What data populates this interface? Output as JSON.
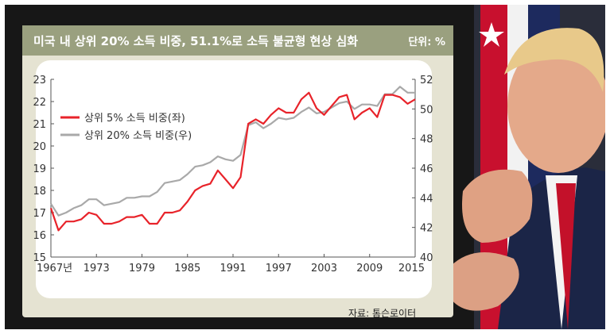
{
  "header": {
    "title": "미국 내 상위 20% 소득 비중, 51.1%로 소득 불균형 현상 심화",
    "unit": "단위: %"
  },
  "source": "자료: 톰슨로이터",
  "colors": {
    "top5": "#e8232a",
    "top20": "#a9a9a9",
    "panel": "#e5e3d2",
    "title_bar": "#9aa07f"
  },
  "chart_data": {
    "type": "line",
    "title": "미국 내 상위 20% 소득 비중, 51.1%로 소득 불균형 현상 심화",
    "x": [
      1967,
      1968,
      1969,
      1970,
      1971,
      1972,
      1973,
      1974,
      1975,
      1976,
      1977,
      1978,
      1979,
      1980,
      1981,
      1982,
      1983,
      1984,
      1985,
      1986,
      1987,
      1988,
      1989,
      1990,
      1991,
      1992,
      1993,
      1994,
      1995,
      1996,
      1997,
      1998,
      1999,
      2000,
      2001,
      2002,
      2003,
      2004,
      2005,
      2006,
      2007,
      2008,
      2009,
      2010,
      2011,
      2012,
      2013,
      2014,
      2015
    ],
    "x_ticks": [
      "1967년",
      "1973",
      "1979",
      "1985",
      "1991",
      "1997",
      "2003",
      "2009",
      "2015"
    ],
    "y_left": {
      "range": [
        15,
        23
      ],
      "ticks": [
        "15",
        "16",
        "17",
        "18",
        "19",
        "20",
        "21",
        "22",
        "23"
      ]
    },
    "y_right": {
      "range": [
        40,
        52
      ],
      "ticks": [
        "40",
        "42",
        "44",
        "46",
        "48",
        "50",
        "52"
      ]
    },
    "legend_position": "top-left",
    "series": [
      {
        "name": "상위 5% 소득 비중(좌)",
        "axis": "left",
        "values": [
          17.2,
          16.2,
          16.6,
          16.6,
          16.7,
          17.0,
          16.9,
          16.5,
          16.5,
          16.6,
          16.8,
          16.8,
          16.9,
          16.5,
          16.5,
          17.0,
          17.0,
          17.1,
          17.5,
          18.0,
          18.2,
          18.3,
          18.9,
          18.5,
          18.1,
          18.6,
          21.0,
          21.2,
          21.0,
          21.4,
          21.7,
          21.5,
          21.5,
          22.1,
          22.4,
          21.7,
          21.4,
          21.8,
          22.2,
          22.3,
          21.2,
          21.5,
          21.7,
          21.3,
          22.3,
          22.3,
          22.2,
          21.9,
          22.1
        ]
      },
      {
        "name": "상위 20% 소득 비중(우)",
        "axis": "right",
        "values": [
          43.6,
          42.8,
          43.0,
          43.3,
          43.5,
          43.9,
          43.9,
          43.5,
          43.6,
          43.7,
          44.0,
          44.0,
          44.1,
          44.1,
          44.4,
          45.0,
          45.1,
          45.2,
          45.6,
          46.1,
          46.2,
          46.4,
          46.8,
          46.6,
          46.5,
          46.9,
          48.9,
          49.1,
          48.7,
          49.0,
          49.4,
          49.3,
          49.4,
          49.8,
          50.1,
          49.7,
          49.8,
          50.1,
          50.4,
          50.5,
          50.0,
          50.3,
          50.3,
          50.2,
          51.0,
          51.0,
          51.5,
          51.1,
          51.1
        ]
      }
    ]
  }
}
